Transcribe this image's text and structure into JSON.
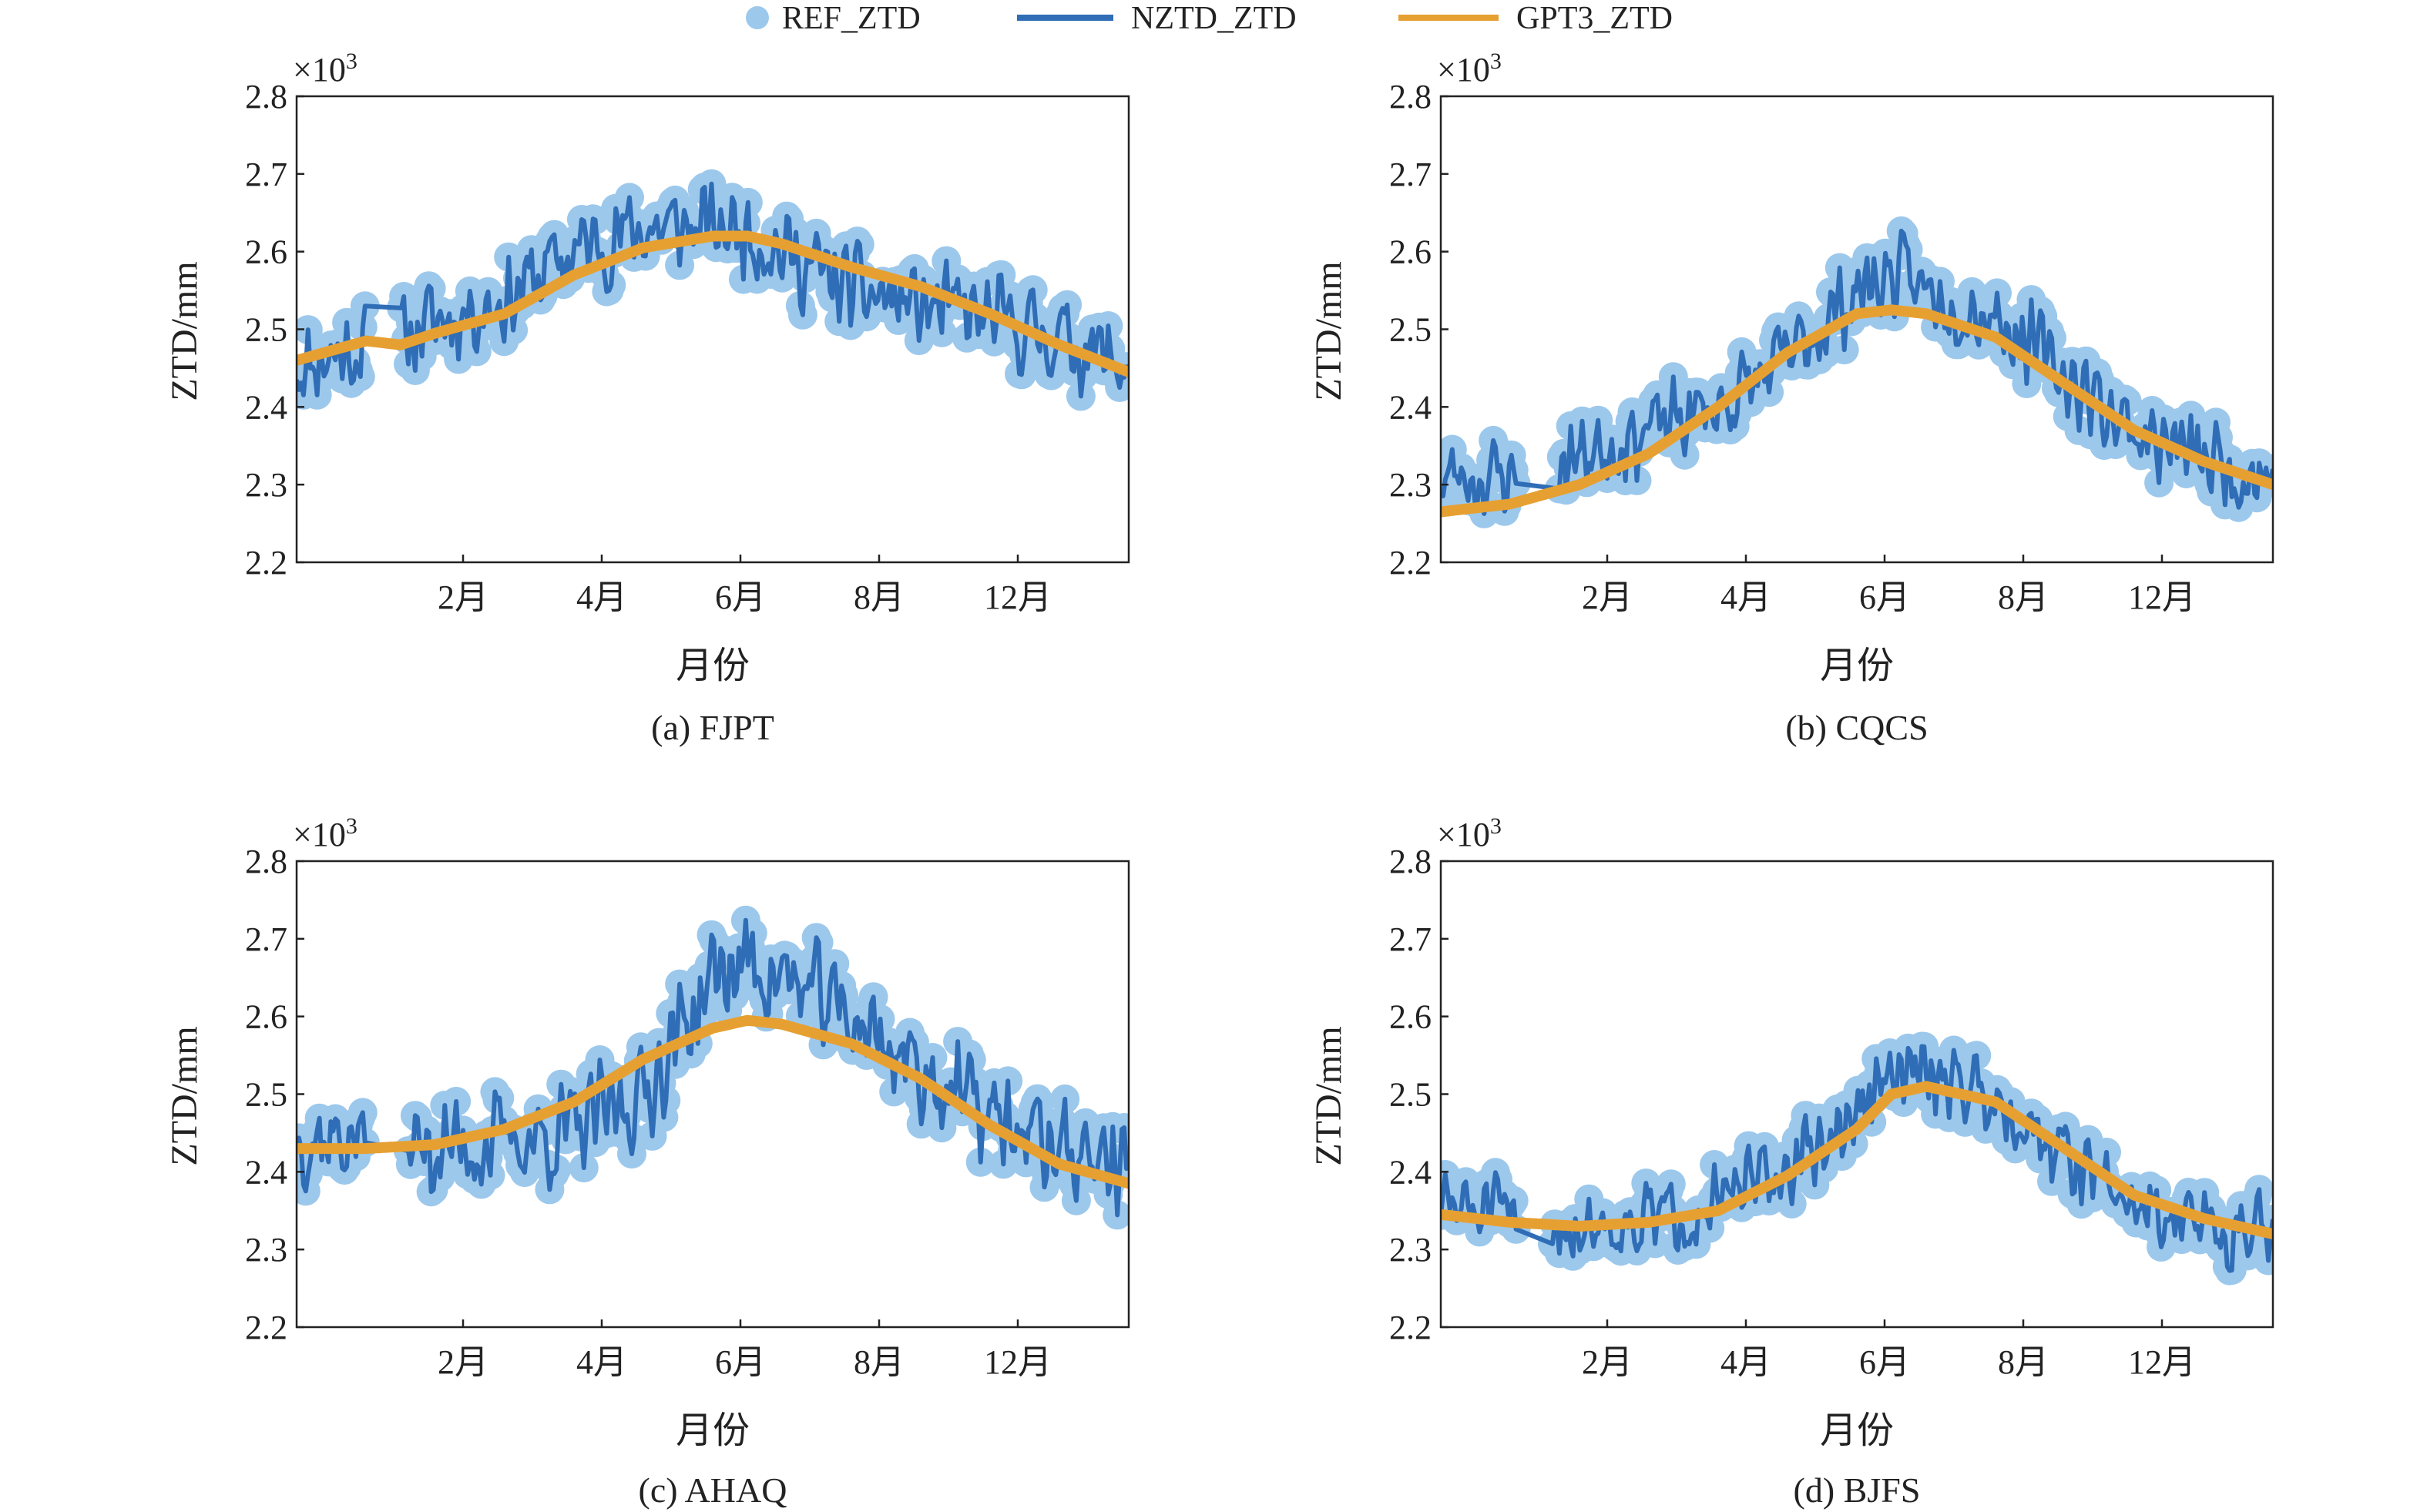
{
  "legend": {
    "ref": "REF_ZTD",
    "nztd": "NZTD_ZTD",
    "gpt3": "GPT3_ZTD"
  },
  "colors": {
    "ref": "#9cc8ec",
    "nztd": "#2f6db6",
    "gpt3": "#e6a032"
  },
  "chart_data": [
    {
      "type": "line",
      "caption": "(a) FJPT",
      "xlabel": "月份",
      "ylabel": "ZTD/mm",
      "multiplier": "×10",
      "multiplier_exp": "3",
      "ylim": [
        2.2,
        2.8
      ],
      "yticks": [
        "2.2",
        "2.3",
        "2.4",
        "2.5",
        "2.6",
        "2.7",
        "2.8"
      ],
      "xlim": [
        0,
        12
      ],
      "xtick_values": [
        2.4,
        4.4,
        6.4,
        8.4,
        10.4
      ],
      "xticks": [
        "2月",
        "4月",
        "6月",
        "8月",
        "12月"
      ],
      "grid": false,
      "gap": [
        1.0,
        1.5
      ],
      "series": [
        {
          "name": "REF_ZTD",
          "style": "scatter"
        },
        {
          "name": "NZTD_ZTD",
          "style": "line"
        },
        {
          "name": "GPT3_ZTD",
          "style": "line",
          "x": [
            0,
            1,
            1.5,
            2,
            3,
            4,
            5,
            6,
            6.5,
            7,
            8,
            9,
            10,
            11,
            12
          ],
          "y": [
            2.46,
            2.485,
            2.48,
            2.495,
            2.52,
            2.57,
            2.605,
            2.62,
            2.62,
            2.61,
            2.58,
            2.555,
            2.52,
            2.48,
            2.445
          ]
        }
      ],
      "nztd_trend": {
        "x": [
          0,
          1,
          1.5,
          2,
          3,
          4,
          5,
          6,
          6.5,
          7,
          8,
          9,
          10,
          11,
          12
        ],
        "y": [
          2.455,
          2.48,
          2.49,
          2.51,
          2.54,
          2.6,
          2.63,
          2.63,
          2.63,
          2.6,
          2.55,
          2.53,
          2.51,
          2.49,
          2.45
        ],
        "amplitude": 0.07,
        "seed": 11
      }
    },
    {
      "type": "line",
      "caption": "(b) CQCS",
      "xlabel": "月份",
      "ylabel": "ZTD/mm",
      "multiplier": "×10",
      "multiplier_exp": "3",
      "ylim": [
        2.2,
        2.8
      ],
      "yticks": [
        "2.2",
        "2.3",
        "2.4",
        "2.5",
        "2.6",
        "2.7",
        "2.8"
      ],
      "xlim": [
        0,
        12
      ],
      "xtick_values": [
        2.4,
        4.4,
        6.4,
        8.4,
        10.4
      ],
      "xticks": [
        "2月",
        "4月",
        "6月",
        "8月",
        "12月"
      ],
      "grid": false,
      "gap": [
        1.1,
        1.7
      ],
      "series": [
        {
          "name": "REF_ZTD",
          "style": "scatter"
        },
        {
          "name": "NZTD_ZTD",
          "style": "line"
        },
        {
          "name": "GPT3_ZTD",
          "style": "line",
          "x": [
            0,
            1,
            2,
            3,
            4,
            5,
            6,
            6.5,
            7,
            8,
            9,
            10,
            11,
            12
          ],
          "y": [
            2.265,
            2.275,
            2.3,
            2.34,
            2.4,
            2.47,
            2.52,
            2.525,
            2.52,
            2.49,
            2.43,
            2.37,
            2.33,
            2.3
          ]
        }
      ],
      "nztd_trend": {
        "x": [
          0,
          1,
          2,
          3,
          4,
          5,
          6,
          6.5,
          7,
          8,
          9,
          10,
          11,
          12
        ],
        "y": [
          2.31,
          2.31,
          2.34,
          2.37,
          2.4,
          2.46,
          2.55,
          2.57,
          2.55,
          2.52,
          2.44,
          2.37,
          2.33,
          2.31
        ],
        "amplitude": 0.065,
        "seed": 23
      }
    },
    {
      "type": "line",
      "caption": "(c) AHAQ",
      "xlabel": "月份",
      "ylabel": "ZTD/mm",
      "multiplier": "×10",
      "multiplier_exp": "3",
      "ylim": [
        2.2,
        2.8
      ],
      "yticks": [
        "2.2",
        "2.3",
        "2.4",
        "2.5",
        "2.6",
        "2.7",
        "2.8"
      ],
      "xlim": [
        0,
        12
      ],
      "xtick_values": [
        2.4,
        4.4,
        6.4,
        8.4,
        10.4
      ],
      "xticks": [
        "2月",
        "4月",
        "6月",
        "8月",
        "12月"
      ],
      "grid": false,
      "gap": [
        1.0,
        1.6
      ],
      "series": [
        {
          "name": "REF_ZTD",
          "style": "scatter"
        },
        {
          "name": "NZTD_ZTD",
          "style": "line"
        },
        {
          "name": "GPT3_ZTD",
          "style": "line",
          "x": [
            0,
            1,
            2,
            3,
            4,
            5,
            6,
            6.5,
            7,
            8,
            9,
            10,
            11,
            12
          ],
          "y": [
            2.43,
            2.43,
            2.435,
            2.455,
            2.49,
            2.545,
            2.585,
            2.595,
            2.59,
            2.565,
            2.52,
            2.46,
            2.41,
            2.385
          ]
        }
      ],
      "nztd_trend": {
        "x": [
          0,
          1,
          2,
          3,
          4,
          5,
          6,
          6.5,
          7,
          8,
          9,
          10,
          11,
          12
        ],
        "y": [
          2.45,
          2.44,
          2.43,
          2.44,
          2.45,
          2.5,
          2.65,
          2.67,
          2.65,
          2.6,
          2.53,
          2.47,
          2.43,
          2.41
        ],
        "amplitude": 0.08,
        "seed": 37
      }
    },
    {
      "type": "line",
      "caption": "(d) BJFS",
      "xlabel": "月份",
      "ylabel": "ZTD/mm",
      "multiplier": "×10",
      "multiplier_exp": "3",
      "ylim": [
        2.2,
        2.8
      ],
      "yticks": [
        "2.2",
        "2.3",
        "2.4",
        "2.5",
        "2.6",
        "2.7",
        "2.8"
      ],
      "xlim": [
        0,
        12
      ],
      "xtick_values": [
        2.4,
        4.4,
        6.4,
        8.4,
        10.4
      ],
      "xticks": [
        "2月",
        "4月",
        "6月",
        "8月",
        "12月"
      ],
      "grid": false,
      "gap": [
        1.1,
        1.6
      ],
      "series": [
        {
          "name": "REF_ZTD",
          "style": "scatter"
        },
        {
          "name": "NZTD_ZTD",
          "style": "line"
        },
        {
          "name": "GPT3_ZTD",
          "style": "line",
          "x": [
            0,
            1,
            2,
            3,
            4,
            5,
            6,
            6.5,
            7,
            8,
            9,
            10,
            11,
            12
          ],
          "y": [
            2.345,
            2.335,
            2.33,
            2.335,
            2.35,
            2.395,
            2.455,
            2.5,
            2.51,
            2.49,
            2.43,
            2.37,
            2.34,
            2.32
          ]
        }
      ],
      "nztd_trend": {
        "x": [
          0,
          1,
          2,
          3,
          4,
          5,
          6,
          6.5,
          7,
          8,
          9,
          10,
          11,
          12
        ],
        "y": [
          2.36,
          2.34,
          2.33,
          2.34,
          2.36,
          2.4,
          2.47,
          2.52,
          2.53,
          2.5,
          2.42,
          2.36,
          2.33,
          2.32
        ],
        "amplitude": 0.06,
        "seed": 51
      }
    }
  ]
}
